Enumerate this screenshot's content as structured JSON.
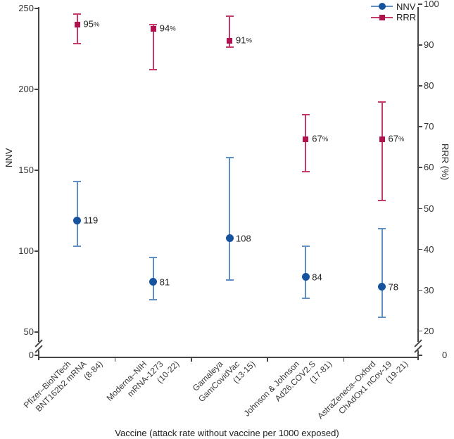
{
  "chart_data": {
    "type": "scatter",
    "subtype": "dual-axis error-bar plot (point estimates with 95% CI whiskers)",
    "title": "",
    "xlabel": "Vaccine (attack rate without vaccine per 1000 exposed)",
    "left_axis": {
      "label": "NNV",
      "ticks": [
        250,
        200,
        150,
        100,
        50,
        0
      ],
      "break_between": [
        0,
        50
      ]
    },
    "right_axis": {
      "label": "RRR (%)",
      "ticks": [
        100,
        90,
        80,
        70,
        60,
        50,
        40,
        30,
        20,
        0
      ],
      "break_between": [
        0,
        20
      ]
    },
    "legend": [
      {
        "label": "NNV",
        "marker": "circle"
      },
      {
        "label": "RRR",
        "marker": "square"
      }
    ],
    "categories": [
      {
        "lines": [
          "Pfizer–BioNTech",
          "BNT162b2 mRNA",
          "(8·84)"
        ]
      },
      {
        "lines": [
          "Moderna–NIH",
          "mRNA-1273",
          "(10·22)"
        ]
      },
      {
        "lines": [
          "Gamaleya",
          "GamCovidVac",
          "(13·15)"
        ]
      },
      {
        "lines": [
          "Johnson & Johnson",
          "Ad26.COV2.S",
          "(17·81)"
        ]
      },
      {
        "lines": [
          "AstraZeneca–Oxford",
          "ChAdOx1 nCov-19",
          "(19·21)"
        ]
      }
    ],
    "series": [
      {
        "name": "NNV",
        "axis": "left",
        "marker": "circle",
        "marker_color": "#15539e",
        "line_color": "#5e90c6",
        "values": [
          119,
          81,
          108,
          84,
          78
        ],
        "ci_low": [
          103,
          70,
          82,
          71,
          59
        ],
        "ci_high": [
          143,
          96,
          158,
          103,
          114
        ],
        "point_labels": [
          "119",
          "81",
          "108",
          "84",
          "78"
        ]
      },
      {
        "name": "RRR",
        "axis": "right",
        "marker": "square",
        "marker_color": "#b01250",
        "line_color": "#c53a68",
        "values": [
          95,
          94,
          91,
          67,
          67
        ],
        "ci_low": [
          90.3,
          84,
          89.5,
          59,
          52
        ],
        "ci_high": [
          97.6,
          95,
          97,
          73,
          76
        ],
        "point_labels": [
          "95%",
          "94%",
          "91%",
          "67%",
          "67%"
        ]
      }
    ]
  },
  "colors": {
    "axis": "#454545",
    "tick_text": "#333333",
    "nnv_marker": "#15539e",
    "nnv_line": "#5e90c6",
    "rrr_marker": "#b01250",
    "rrr_line": "#c53a68"
  }
}
